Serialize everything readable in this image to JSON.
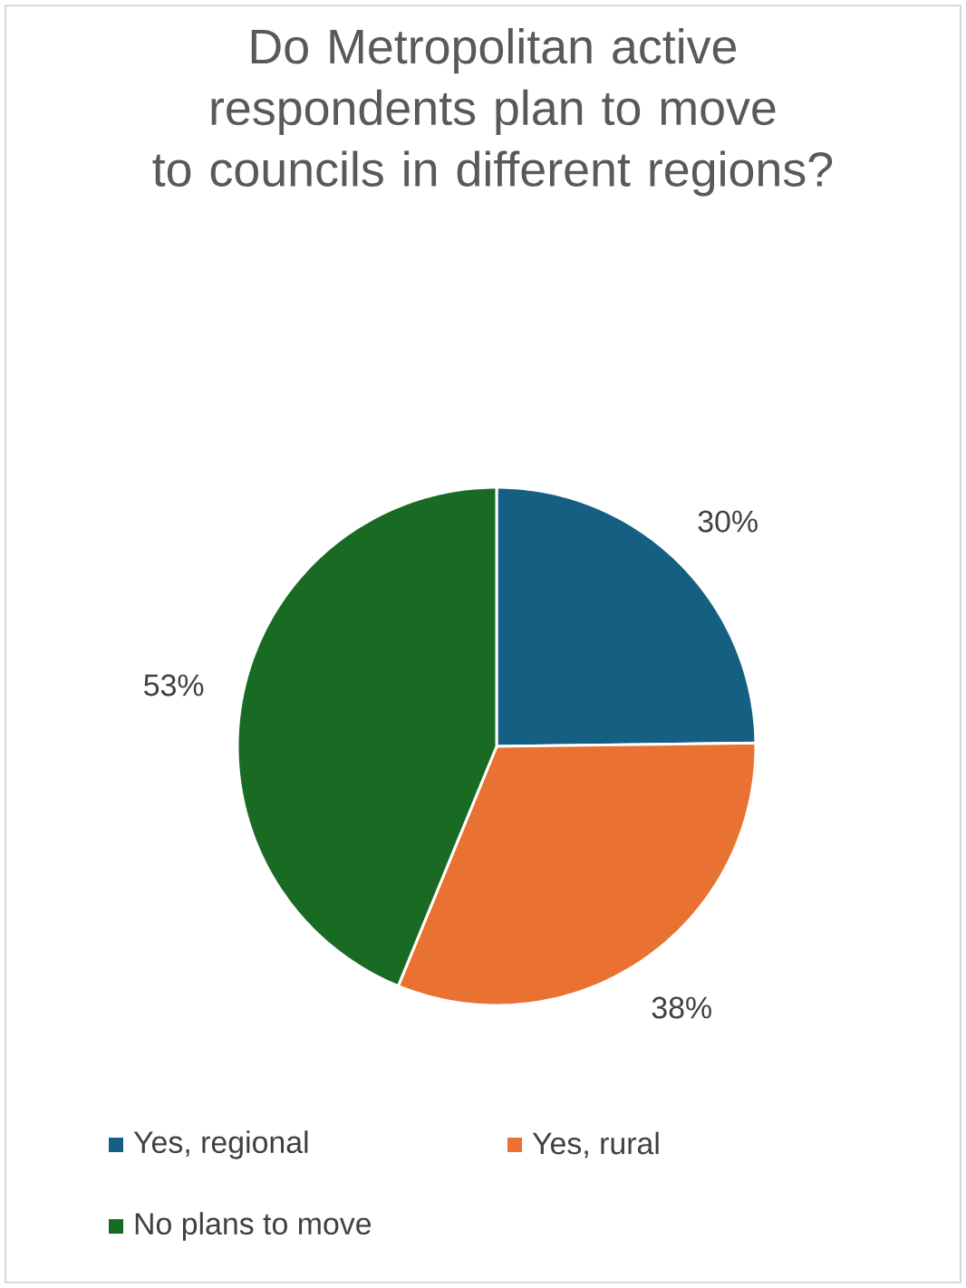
{
  "chart_data": {
    "type": "pie",
    "title": "Do Metropolitan active respondents plan to move to councils in different regions?",
    "categories": [
      "Yes, regional",
      "Yes, rural",
      "No plans to move"
    ],
    "values": [
      30,
      38,
      53
    ],
    "value_labels": [
      "30%",
      "38%",
      "53%"
    ],
    "colors": [
      "#156082",
      "#e97132",
      "#196b24"
    ],
    "legend": "bottom"
  }
}
